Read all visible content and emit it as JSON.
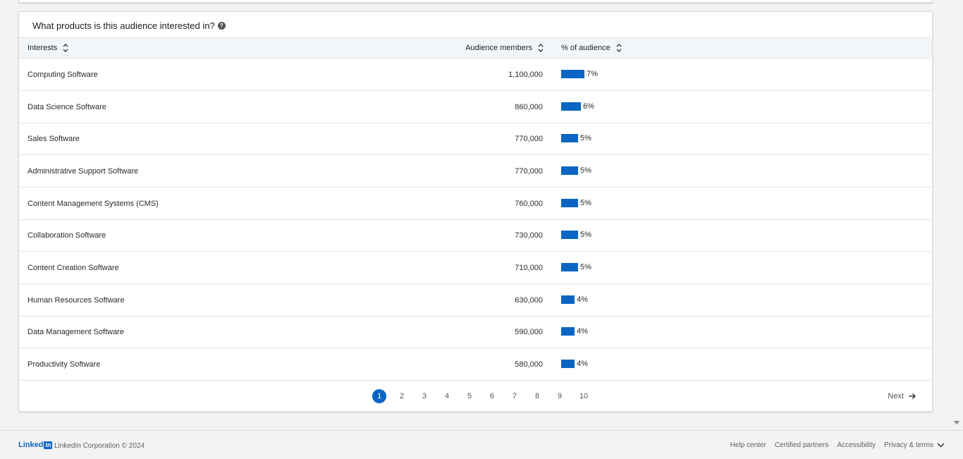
{
  "card": {
    "title": "What products is this audience interested in?",
    "help_icon": "question-circle-icon"
  },
  "table": {
    "headers": {
      "interests": "Interests",
      "members": "Audience members",
      "pct": "% of audience"
    },
    "rows": [
      {
        "name": "Computing Software",
        "members": "1,100,000",
        "pct": "7%",
        "pct_value": 7
      },
      {
        "name": "Data Science Software",
        "members": "860,000",
        "pct": "6%",
        "pct_value": 6
      },
      {
        "name": "Sales Software",
        "members": "770,000",
        "pct": "5%",
        "pct_value": 5
      },
      {
        "name": "Administrative Support Software",
        "members": "770,000",
        "pct": "5%",
        "pct_value": 5
      },
      {
        "name": "Content Management Systems (CMS)",
        "members": "760,000",
        "pct": "5%",
        "pct_value": 5
      },
      {
        "name": "Collaboration Software",
        "members": "730,000",
        "pct": "5%",
        "pct_value": 5
      },
      {
        "name": "Content Creation Software",
        "members": "710,000",
        "pct": "5%",
        "pct_value": 5
      },
      {
        "name": "Human Resources Software",
        "members": "630,000",
        "pct": "4%",
        "pct_value": 4
      },
      {
        "name": "Data Management Software",
        "members": "590,000",
        "pct": "4%",
        "pct_value": 4
      },
      {
        "name": "Productivity Software",
        "members": "580,000",
        "pct": "4%",
        "pct_value": 4
      }
    ],
    "bar_color": "#0a66c2"
  },
  "pagination": {
    "pages": [
      "1",
      "2",
      "3",
      "4",
      "5",
      "6",
      "7",
      "8",
      "9",
      "10"
    ],
    "active": "1",
    "next_label": "Next"
  },
  "footer": {
    "logo_text": "Linked",
    "logo_in": "in",
    "corporation": "LinkedIn Corporation © 2024",
    "links": [
      "Help center",
      "Certified partners",
      "Accessibility",
      "Privacy & terms"
    ]
  }
}
